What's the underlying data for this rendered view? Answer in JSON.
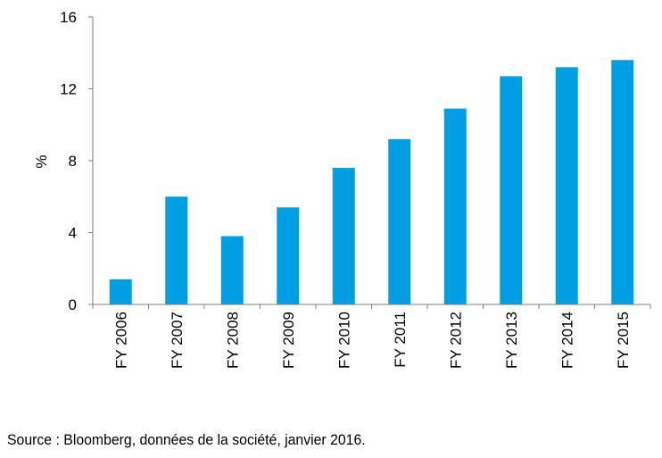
{
  "chart_data": {
    "type": "bar",
    "title": "",
    "xlabel": "",
    "ylabel": "%",
    "ylim": [
      0,
      16
    ],
    "yticks": [
      0,
      4,
      8,
      12,
      16
    ],
    "categories": [
      "FY 2006",
      "FY 2007",
      "FY 2008",
      "FY 2009",
      "FY 2010",
      "FY 2011",
      "FY 2012",
      "FY 2013",
      "FY 2014",
      "FY 2015"
    ],
    "values": [
      1.4,
      6.0,
      3.8,
      5.4,
      7.6,
      9.2,
      10.9,
      12.7,
      13.2,
      13.6
    ],
    "bar_color": "#009fe3",
    "axis_color": "#7f7f7f",
    "grid": false,
    "legend": "none"
  },
  "footer": {
    "source": "Source : Bloomberg, données de la société, janvier 2016."
  }
}
